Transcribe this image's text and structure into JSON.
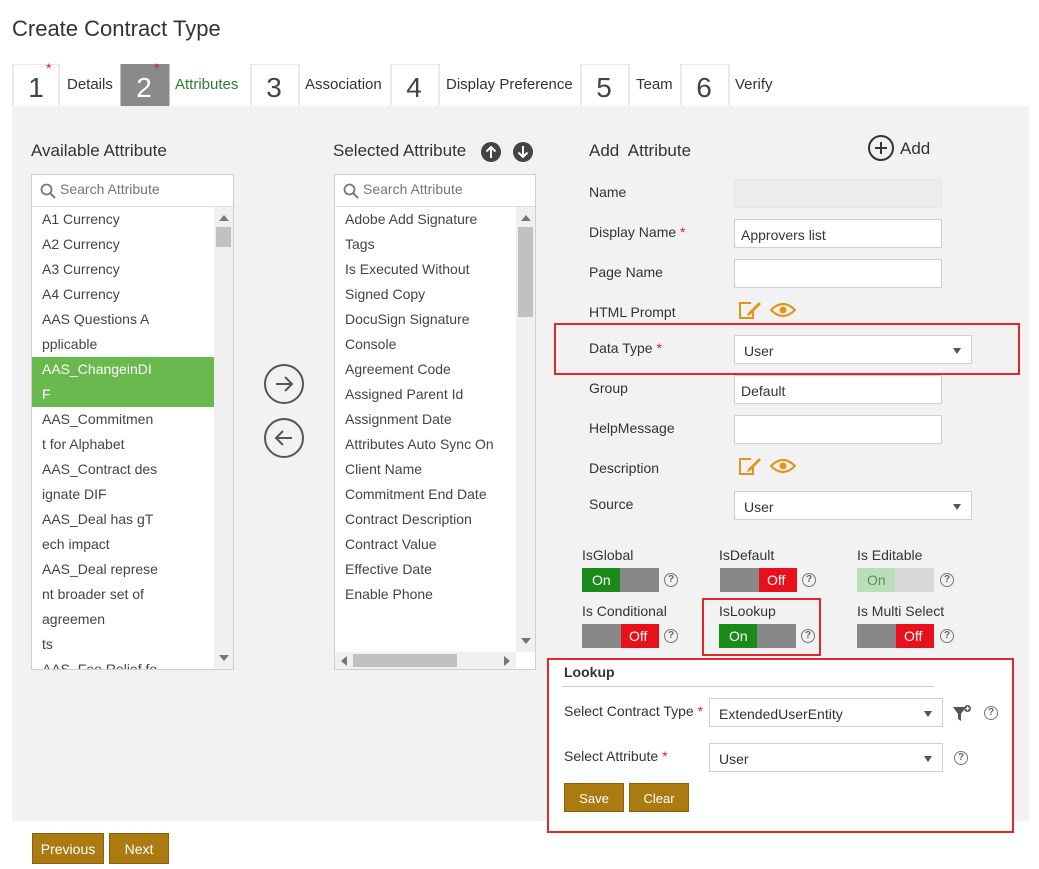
{
  "page": {
    "title": "Create Contract Type"
  },
  "wizard": {
    "steps": [
      {
        "number": "1",
        "label": "Details",
        "required": "*"
      },
      {
        "number": "2",
        "label": "Attributes",
        "required": "*"
      },
      {
        "number": "3",
        "label": "Association"
      },
      {
        "number": "4",
        "label": "Display Preference"
      },
      {
        "number": "5",
        "label": "Team"
      },
      {
        "number": "6",
        "label": "Verify"
      }
    ],
    "active_step": 2
  },
  "available": {
    "title": "Available Attribute",
    "search_placeholder": "Search Attribute",
    "items": [
      [
        "A1 Currency"
      ],
      [
        "A2 Currency"
      ],
      [
        "A3 Currency"
      ],
      [
        "A4 Currency"
      ],
      [
        "AAS Questions A",
        "pplicable"
      ],
      [
        "AAS_ChangeinDI",
        "F"
      ],
      [
        "AAS_Commitmen",
        "t for Alphabet"
      ],
      [
        "AAS_Contract des",
        "ignate DIF"
      ],
      [
        "AAS_Deal has gT",
        "ech impact"
      ],
      [
        "AAS_Deal represe",
        "nt broader set of agreemen",
        "ts"
      ],
      [
        "AAS_Fee Relief fo"
      ]
    ],
    "selected_index": 5
  },
  "selected": {
    "title": "Selected Attribute",
    "search_placeholder": "Search Attribute",
    "items": [
      [
        "Adobe Add Signature",
        "Tags"
      ],
      [
        "Is Executed Without",
        "Signed Copy"
      ],
      [
        "DocuSign Signature",
        "Console"
      ],
      [
        "Agreement Code"
      ],
      [
        "Assigned Parent Id"
      ],
      [
        "Assignment Date"
      ],
      [
        "Attributes Auto Sync On"
      ],
      [
        "Client Name"
      ],
      [
        "Commitment End Date"
      ],
      [
        "Contract Description"
      ],
      [
        "Contract Value"
      ],
      [
        "Effective Date"
      ],
      [
        "Enable Phone"
      ]
    ]
  },
  "add_attribute": {
    "title": "Add  Attribute",
    "add_label": "Add",
    "labels": {
      "name": "Name",
      "display_name": "Display Name",
      "page_name": "Page Name",
      "html_prompt": "HTML Prompt",
      "data_type": "Data Type",
      "group": "Group",
      "help_message": "HelpMessage",
      "description": "Description",
      "source": "Source"
    },
    "required_mark": "*",
    "values": {
      "name": "",
      "display_name": "Approvers list",
      "page_name": "",
      "data_type": "User",
      "group": "Default",
      "help_message": "",
      "source": "User"
    }
  },
  "toggles": [
    {
      "label": "IsGlobal",
      "state": "On"
    },
    {
      "label": "IsDefault",
      "state": "Off"
    },
    {
      "label": "Is Editable",
      "state": "On",
      "disabled": true
    },
    {
      "label": "Is Conditional",
      "state": "Off"
    },
    {
      "label": "IsLookup",
      "state": "On"
    },
    {
      "label": "Is Multi Select",
      "state": "Off"
    }
  ],
  "toggle_text": {
    "on": "On",
    "off": "Off",
    "help": "?"
  },
  "lookup": {
    "title": "Lookup",
    "contract_type_label": "Select Contract Type",
    "contract_type_value": "ExtendedUserEntity",
    "attribute_label": "Select Attribute",
    "attribute_value": "User",
    "save_label": "Save",
    "clear_label": "Clear"
  },
  "footer": {
    "previous_label": "Previous",
    "next_label": "Next"
  },
  "colors": {
    "accent_gold": "#ab7a10",
    "selected_green": "#6ab94f",
    "toggle_on": "#1a8a1a",
    "toggle_off": "#e8101a",
    "highlight_red": "#e02828",
    "icon_orange": "#e0961a"
  }
}
